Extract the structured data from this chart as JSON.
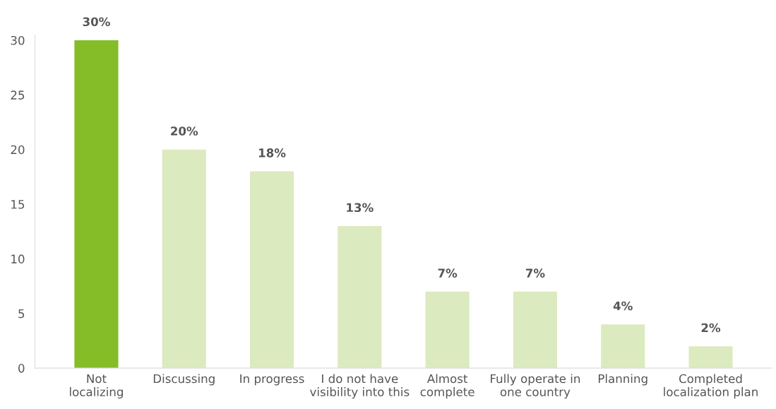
{
  "chart_data": {
    "type": "bar",
    "categories": [
      "Not\nlocalizing",
      "Discussing",
      "In progress",
      "I do not have\nvisibility into this",
      "Almost\ncomplete",
      "Fully operate in\none country",
      "Planning",
      "Completed\nlocalization plan"
    ],
    "values": [
      30,
      20,
      18,
      13,
      7,
      7,
      4,
      2
    ],
    "colors": [
      "#84bd27",
      "#dceabf",
      "#dceabf",
      "#dceabf",
      "#dceabf",
      "#dceabf",
      "#dceabf",
      "#dceabf"
    ],
    "value_labels": [
      "30%",
      "20%",
      "18%",
      "13%",
      "7%",
      "7%",
      "4%",
      "2%"
    ],
    "ylim": [
      0,
      30.5
    ],
    "yticks": [
      0,
      5,
      10,
      15,
      20,
      25,
      30
    ],
    "grid": false,
    "legend": false
  }
}
